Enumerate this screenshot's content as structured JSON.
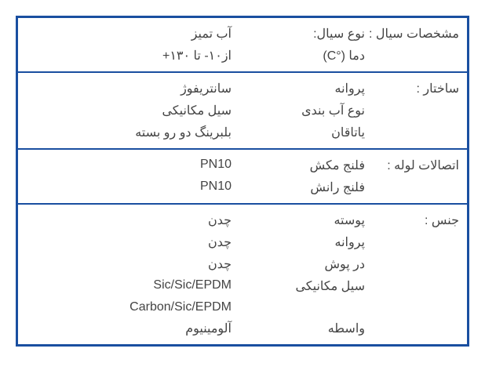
{
  "colors": {
    "border": "#1a4fa0",
    "text": "#444444",
    "background": "#ffffff"
  },
  "sections": [
    {
      "title": "مشخصات سیال :",
      "rows": [
        {
          "label": "نوع سیال:",
          "value": "آب تمیز"
        },
        {
          "label": "دما (°C)",
          "value": "از۱۰- تا ۱۳۰+"
        }
      ]
    },
    {
      "title": "ساختار :",
      "rows": [
        {
          "label": "پروانه",
          "value": "سانتریفوژ"
        },
        {
          "label": "نوع آب بندی",
          "value": "سیل مکانیکی"
        },
        {
          "label": "یاتاقان",
          "value": "بلبرینگ دو رو بسته"
        }
      ]
    },
    {
      "title": "اتصالات لوله :",
      "rows": [
        {
          "label": "فلنج مکش",
          "value": "PN10"
        },
        {
          "label": "فلنج رانش",
          "value": "PN10"
        }
      ]
    },
    {
      "title": "جنس :",
      "rows": [
        {
          "label": "پوسته",
          "value": "چدن"
        },
        {
          "label": "پروانه",
          "value": "چدن"
        },
        {
          "label": "در پوش",
          "value": "چدن"
        },
        {
          "label": "سیل مکانیکی",
          "value": "Sic/Sic/EPDM"
        },
        {
          "label": "",
          "value": "Carbon/Sic/EPDM"
        },
        {
          "label": "واسطه",
          "value": "آلومینیوم"
        }
      ]
    }
  ]
}
